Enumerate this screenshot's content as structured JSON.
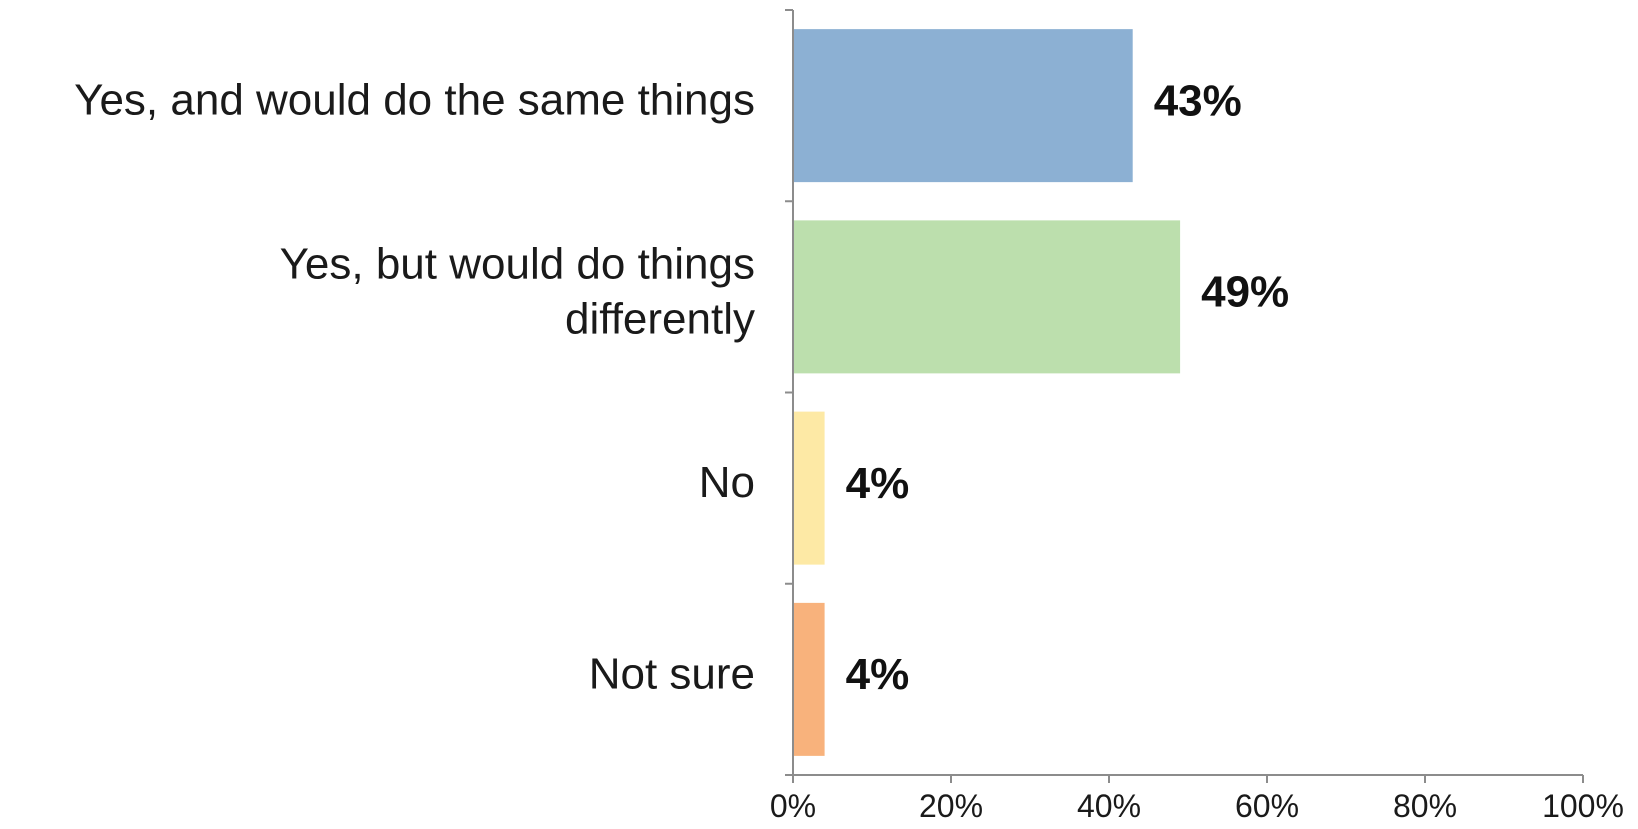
{
  "chart_data": {
    "type": "bar",
    "orientation": "horizontal",
    "categories": [
      [
        "Yes, and would do the same things"
      ],
      [
        "Yes, but would do things",
        "differently"
      ],
      [
        "No"
      ],
      [
        "Not sure"
      ]
    ],
    "values": [
      43,
      49,
      4,
      4
    ],
    "data_labels": [
      "43%",
      "49%",
      "4%",
      "4%"
    ],
    "bar_colors": [
      "#8cb0d3",
      "#bcdfad",
      "#fde9a5",
      "#f8b27c"
    ],
    "xlim": [
      0,
      100
    ],
    "x_ticks": [
      0,
      20,
      40,
      60,
      80,
      100
    ],
    "x_tick_labels": [
      "0%",
      "20%",
      "40%",
      "60%",
      "80%",
      "100%"
    ],
    "title": "",
    "xlabel": "",
    "ylabel": "",
    "grid": false,
    "legend": "none"
  }
}
